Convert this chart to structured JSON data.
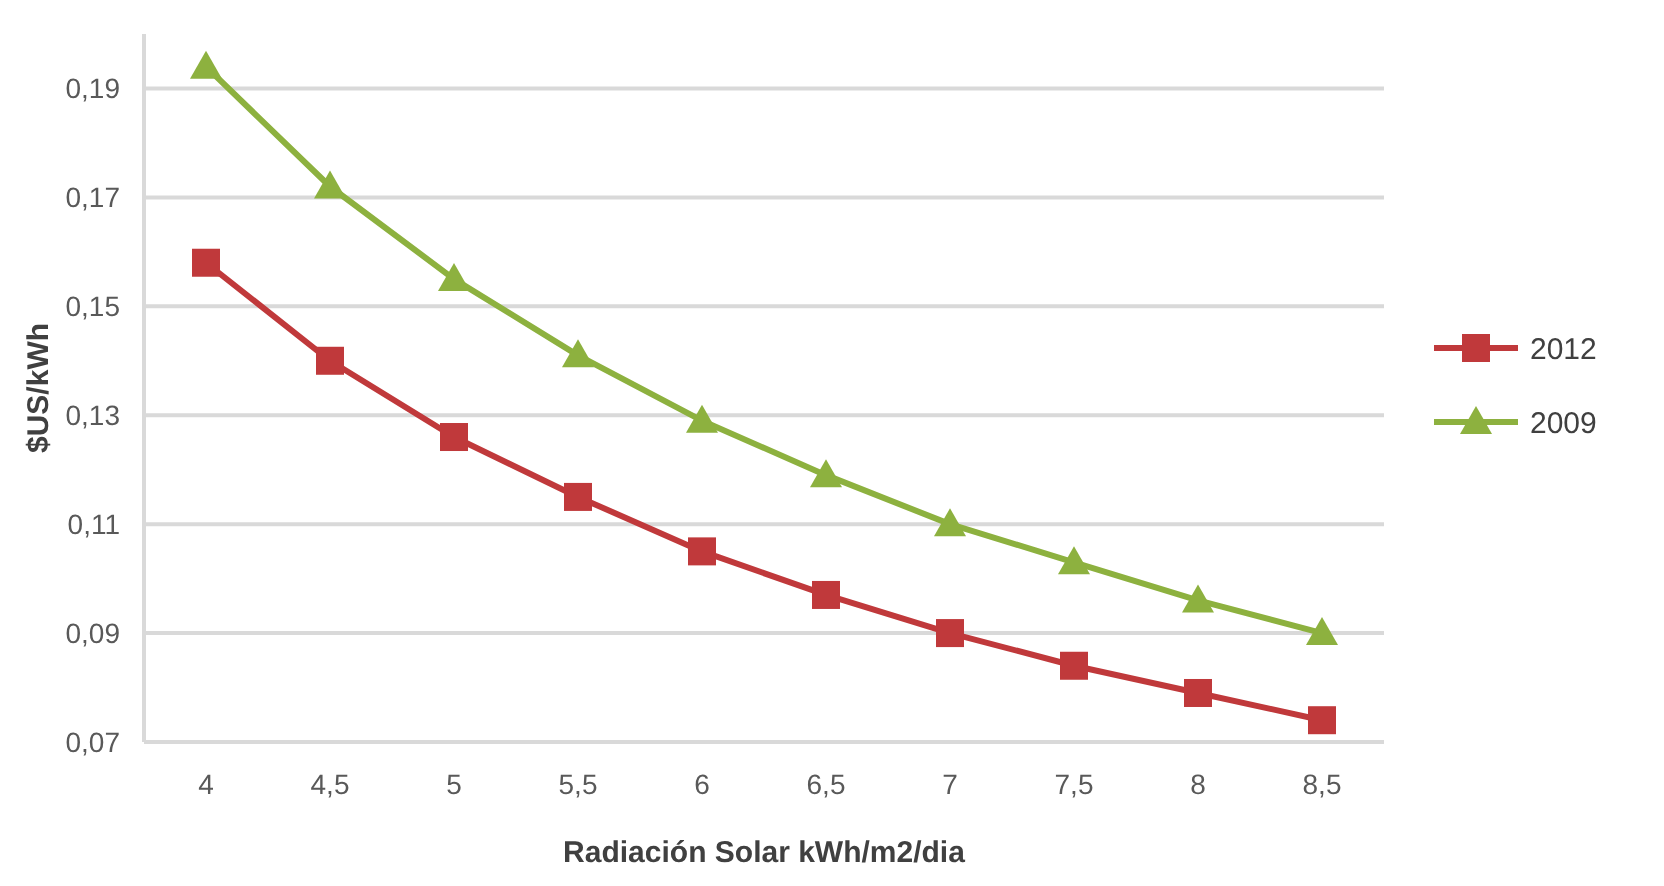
{
  "chart_data": {
    "type": "line",
    "xlabel": "Radiación Solar kWh/m2/dia",
    "ylabel": "$US/kWh",
    "categories": [
      "4",
      "4,5",
      "5",
      "5,5",
      "6",
      "6,5",
      "7",
      "7,5",
      "8",
      "8,5"
    ],
    "series": [
      {
        "name": "2012",
        "color": "#c0393b",
        "marker": "square",
        "values": [
          0.158,
          0.14,
          0.126,
          0.115,
          0.105,
          0.097,
          0.09,
          0.084,
          0.079,
          0.074
        ]
      },
      {
        "name": "2009",
        "color": "#8db13f",
        "marker": "triangle",
        "values": [
          0.194,
          0.172,
          0.155,
          0.141,
          0.129,
          0.119,
          0.11,
          0.103,
          0.096,
          0.09
        ]
      }
    ],
    "ylim": [
      0.07,
      0.2
    ],
    "yticks": [
      {
        "value": 0.07,
        "label": "0,07"
      },
      {
        "value": 0.09,
        "label": "0,09"
      },
      {
        "value": 0.11,
        "label": "0,11"
      },
      {
        "value": 0.13,
        "label": "0,13"
      },
      {
        "value": 0.15,
        "label": "0,15"
      },
      {
        "value": 0.17,
        "label": "0,17"
      },
      {
        "value": 0.19,
        "label": "0,19"
      }
    ],
    "grid": "y",
    "legend": "right"
  }
}
